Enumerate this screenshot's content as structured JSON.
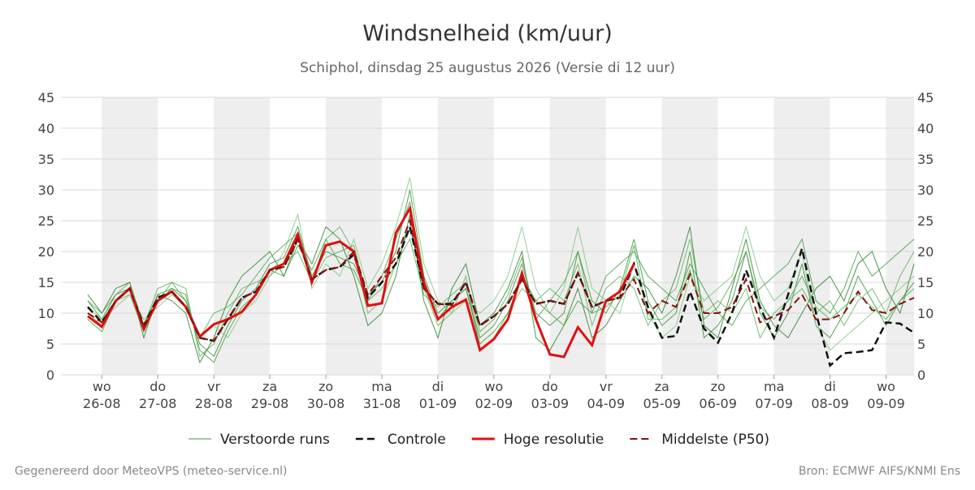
{
  "chart_data": {
    "type": "ensemble-line",
    "title": "Windsnelheid (km/uur)",
    "subtitle": "Schiphol, dinsdag 25 augustus 2026 (Versie di 12 uur)",
    "footer_left": "Gegenereerd door MeteoVPS (meteo-service.nl)",
    "footer_right": "Bron: ECMWF AIFS/KNMI Ens",
    "x": [
      "2026-08-25T18:00",
      "2026-08-26T00:00",
      "2026-08-26T06:00",
      "2026-08-26T12:00",
      "2026-08-26T18:00",
      "2026-08-27T00:00",
      "2026-08-27T06:00",
      "2026-08-27T12:00",
      "2026-08-27T18:00",
      "2026-08-28T00:00",
      "2026-08-28T06:00",
      "2026-08-28T12:00",
      "2026-08-28T18:00",
      "2026-08-29T00:00",
      "2026-08-29T06:00",
      "2026-08-29T12:00",
      "2026-08-29T18:00",
      "2026-08-30T00:00",
      "2026-08-30T06:00",
      "2026-08-30T12:00",
      "2026-08-30T18:00",
      "2026-08-31T00:00",
      "2026-08-31T06:00",
      "2026-08-31T12:00",
      "2026-08-31T18:00",
      "2026-09-01T00:00",
      "2026-09-01T06:00",
      "2026-09-01T12:00",
      "2026-09-01T18:00",
      "2026-09-02T00:00",
      "2026-09-02T06:00",
      "2026-09-02T12:00",
      "2026-09-02T18:00",
      "2026-09-03T00:00",
      "2026-09-03T06:00",
      "2026-09-03T12:00",
      "2026-09-03T18:00",
      "2026-09-04T00:00",
      "2026-09-04T06:00",
      "2026-09-04T12:00",
      "2026-09-04T18:00",
      "2026-09-05T00:00",
      "2026-09-05T06:00",
      "2026-09-05T12:00",
      "2026-09-05T18:00",
      "2026-09-06T00:00",
      "2026-09-06T06:00",
      "2026-09-06T12:00",
      "2026-09-06T18:00",
      "2026-09-07T00:00",
      "2026-09-07T06:00",
      "2026-09-07T12:00",
      "2026-09-07T18:00",
      "2026-09-08T00:00",
      "2026-09-08T06:00",
      "2026-09-08T12:00",
      "2026-09-08T18:00",
      "2026-09-09T00:00",
      "2026-09-09T06:00",
      "2026-09-09T12:00"
    ],
    "xlim": [
      "2026-08-25T06:30",
      "2026-09-09T12:00"
    ],
    "xticks": [
      {
        "value": "2026-08-26T00:00",
        "label": "wo 26-08"
      },
      {
        "value": "2026-08-27T00:00",
        "label": "do 27-08"
      },
      {
        "value": "2026-08-28T00:00",
        "label": "vr 28-08"
      },
      {
        "value": "2026-08-29T00:00",
        "label": "za 29-08"
      },
      {
        "value": "2026-08-30T00:00",
        "label": "zo 30-08"
      },
      {
        "value": "2026-08-31T00:00",
        "label": "ma 31-08"
      },
      {
        "value": "2026-09-01T00:00",
        "label": "di 01-09"
      },
      {
        "value": "2026-09-02T00:00",
        "label": "wo 02-09"
      },
      {
        "value": "2026-09-03T00:00",
        "label": "do 03-09"
      },
      {
        "value": "2026-09-04T00:00",
        "label": "vr 04-09"
      },
      {
        "value": "2026-09-05T00:00",
        "label": "za 05-09"
      },
      {
        "value": "2026-09-06T00:00",
        "label": "zo 06-09"
      },
      {
        "value": "2026-09-07T00:00",
        "label": "ma 07-09"
      },
      {
        "value": "2026-09-08T00:00",
        "label": "di 08-09"
      },
      {
        "value": "2026-09-09T00:00",
        "label": "wo 09-09"
      }
    ],
    "ylim": [
      0,
      45
    ],
    "yticks": [
      0,
      5,
      10,
      15,
      20,
      25,
      30,
      35,
      40,
      45
    ],
    "grid": true,
    "ensemble": {
      "name": "Verstoorde runs",
      "color": "#3a9a3a",
      "runs": [
        [
          12,
          9,
          13,
          14,
          8,
          13,
          14,
          12,
          5,
          3,
          8,
          12,
          14,
          18,
          19,
          24,
          16,
          20,
          19,
          18,
          13,
          15,
          20,
          30,
          16,
          10,
          12,
          14,
          6,
          8,
          12,
          18,
          10,
          8,
          10,
          20,
          12,
          10,
          14,
          22,
          12,
          8,
          10,
          20,
          6,
          8,
          12,
          20,
          10,
          6,
          10,
          18,
          8,
          6,
          10,
          16,
          12,
          8,
          12,
          15
        ],
        [
          10,
          8,
          12,
          13,
          7,
          12,
          15,
          14,
          3,
          5,
          10,
          14,
          15,
          16,
          18,
          20,
          15,
          22,
          24,
          20,
          10,
          12,
          18,
          24,
          14,
          8,
          10,
          16,
          4,
          6,
          10,
          14,
          12,
          14,
          12,
          18,
          8,
          14,
          16,
          14,
          8,
          12,
          14,
          22,
          10,
          12,
          10,
          14,
          6,
          10,
          12,
          14,
          10,
          12,
          8,
          12,
          14,
          10,
          16,
          20
        ],
        [
          13,
          10,
          14,
          15,
          6,
          13,
          12,
          10,
          2,
          6,
          12,
          16,
          18,
          20,
          16,
          22,
          18,
          24,
          22,
          16,
          8,
          10,
          16,
          26,
          12,
          6,
          14,
          18,
          8,
          10,
          14,
          20,
          6,
          4,
          8,
          14,
          6,
          8,
          12,
          16,
          14,
          10,
          16,
          24,
          8,
          6,
          14,
          22,
          12,
          8,
          6,
          10,
          14,
          16,
          12,
          18,
          20,
          14,
          10,
          18
        ],
        [
          11,
          9,
          11,
          13,
          9,
          11,
          13,
          11,
          6,
          8,
          6,
          10,
          12,
          16,
          20,
          26,
          14,
          18,
          16,
          22,
          14,
          18,
          24,
          32,
          18,
          12,
          10,
          12,
          10,
          12,
          16,
          24,
          14,
          10,
          14,
          24,
          14,
          12,
          10,
          18,
          10,
          6,
          8,
          16,
          12,
          14,
          16,
          24,
          16,
          12,
          14,
          20,
          8,
          4,
          6,
          8,
          10,
          12,
          14,
          16
        ],
        [
          9,
          7,
          12,
          14,
          7,
          12,
          14,
          13,
          4,
          2,
          7,
          11,
          13,
          17,
          16,
          21,
          17,
          22,
          18,
          17,
          12,
          16,
          22,
          28,
          15,
          9,
          12,
          14,
          5,
          7,
          10,
          16,
          12,
          10,
          8,
          12,
          10,
          16,
          18,
          20,
          16,
          14,
          12,
          18,
          14,
          10,
          8,
          12,
          14,
          16,
          18,
          22,
          12,
          10,
          14,
          20,
          16,
          18,
          20,
          22
        ],
        [
          12,
          10,
          13,
          15,
          8,
          14,
          15,
          12,
          6,
          10,
          11,
          13,
          16,
          19,
          21,
          23,
          15,
          19,
          20,
          21,
          12,
          14,
          18,
          22,
          13,
          11,
          13,
          15,
          7,
          9,
          13,
          19,
          9,
          12,
          15,
          20,
          10,
          11,
          13,
          21,
          9,
          9,
          11,
          17,
          9,
          11,
          15,
          20,
          11,
          9,
          12,
          16,
          11,
          9,
          11,
          13,
          11,
          9,
          12,
          14
        ]
      ]
    },
    "series": [
      {
        "name": "Controle",
        "color": "#111111",
        "dash": true,
        "width": 2.5,
        "values": [
          11,
          8.5,
          12,
          14,
          8,
          12.5,
          13.5,
          11,
          6,
          5.5,
          9,
          12.5,
          13.5,
          17,
          17.5,
          22,
          15.5,
          17,
          17.5,
          19.5,
          12.5,
          15,
          18,
          24,
          14,
          11.5,
          11.5,
          15,
          8,
          9.5,
          11.5,
          15.5,
          11.5,
          12,
          11.5,
          16.5,
          11,
          12,
          12.5,
          18,
          11,
          6,
          6.3,
          13.5,
          7.5,
          5.2,
          10,
          17,
          11,
          6,
          13,
          20.5,
          10,
          1.5,
          3.5,
          3.7,
          4,
          8.5,
          8.3,
          6.8
        ]
      },
      {
        "name": "Hoge resolutie",
        "color": "#e01010",
        "dash": false,
        "width": 3,
        "values": [
          9.5,
          7.8,
          12,
          14,
          7.5,
          12,
          13.5,
          11,
          6.2,
          8.2,
          9,
          10.2,
          13,
          17,
          18,
          22.8,
          15,
          21,
          21.6,
          20,
          11.2,
          11.6,
          23,
          27,
          15,
          9,
          11,
          12.2,
          4,
          5.8,
          9,
          16.5,
          9,
          3.3,
          2.9,
          7.7,
          4.8,
          12,
          13.5,
          18,
          null,
          null,
          null,
          null,
          null,
          null,
          null,
          null,
          null,
          null,
          null,
          null,
          null,
          null,
          null,
          null,
          null,
          null,
          null,
          null
        ]
      },
      {
        "name": "Middelste (P50)",
        "color": "#8b1010",
        "dash": true,
        "width": 2,
        "values": [
          10,
          8.5,
          12,
          14,
          7.8,
          12.3,
          13.5,
          11,
          6,
          5.5,
          9,
          12.5,
          13.5,
          17,
          17.5,
          22,
          15.5,
          17,
          17.5,
          20,
          13,
          16,
          19,
          25,
          14,
          11.5,
          11.3,
          15,
          8,
          9.5,
          11.5,
          15.5,
          11.5,
          12,
          11.5,
          16.5,
          11,
          12,
          12.5,
          15.5,
          10,
          12,
          11,
          16.3,
          10,
          10,
          11,
          15.5,
          8.5,
          9.5,
          10.5,
          13,
          9,
          9,
          10,
          13.5,
          10.5,
          10,
          11.5,
          12.5
        ]
      }
    ]
  }
}
